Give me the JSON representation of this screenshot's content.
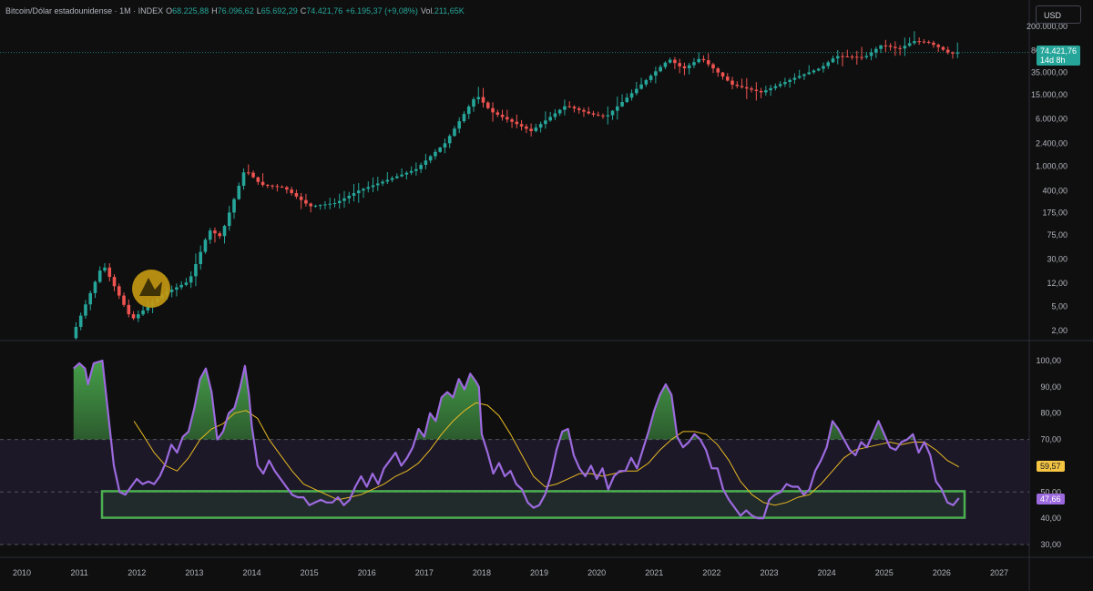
{
  "header": {
    "symbol": "Bitcoin/Dólar estadounidense · 1M · INDEX",
    "open_label": "O",
    "open": "68.225,88",
    "high_label": "H",
    "high": "76.096,62",
    "low_label": "L",
    "low": "65.692,29",
    "close_label": "C",
    "close": "74.421,76",
    "change": "+6.195,37 (+9,08%)",
    "vol_label": "Vol.",
    "vol": "211,65K",
    "currency": "USD"
  },
  "price_tag": {
    "value": "74.421,76",
    "countdown": "14d 8h",
    "color": "#26a69a"
  },
  "rsi_tags": {
    "ma": "59,57",
    "rsi": "47,66",
    "ma_color": "#f5c542",
    "rsi_color": "#9c6ade"
  },
  "colors": {
    "up": "#26a69a",
    "down": "#ef5350",
    "rsi": "#9c6ade",
    "ma": "#e8b923",
    "box": "#4caf50"
  },
  "chart_data": [
    {
      "type": "candlestick",
      "scale": "log",
      "y_ticks": [
        "2,00",
        "5,00",
        "12,00",
        "30,00",
        "75,00",
        "175,00",
        "400,00",
        "1.000,00",
        "2.400,00",
        "6.000,00",
        "15.000,00",
        "35.000,00",
        "80.000,00",
        "200.000,00"
      ],
      "x_ticks": [
        "2010",
        "2011",
        "2012",
        "2013",
        "2014",
        "2015",
        "2016",
        "2017",
        "2018",
        "2019",
        "2020",
        "2021",
        "2022",
        "2023",
        "2024",
        "2025",
        "2026",
        "2027"
      ],
      "price_path": [
        [
          2010.9,
          1.5
        ],
        [
          2011.45,
          25
        ],
        [
          2011.95,
          3
        ],
        [
          2012.5,
          8
        ],
        [
          2012.95,
          13
        ],
        [
          2013.3,
          90
        ],
        [
          2013.5,
          70
        ],
        [
          2013.92,
          900
        ],
        [
          2014.2,
          500
        ],
        [
          2014.6,
          450
        ],
        [
          2015.05,
          220
        ],
        [
          2015.5,
          250
        ],
        [
          2015.9,
          400
        ],
        [
          2016.5,
          650
        ],
        [
          2016.9,
          900
        ],
        [
          2017.4,
          2400
        ],
        [
          2017.95,
          15000
        ],
        [
          2018.2,
          8000
        ],
        [
          2018.9,
          3800
        ],
        [
          2019.5,
          10000
        ],
        [
          2019.95,
          7200
        ],
        [
          2020.2,
          6500
        ],
        [
          2020.95,
          29000
        ],
        [
          2021.3,
          58000
        ],
        [
          2021.55,
          40000
        ],
        [
          2021.85,
          61000
        ],
        [
          2022.4,
          22000
        ],
        [
          2022.9,
          16500
        ],
        [
          2023.5,
          29000
        ],
        [
          2023.95,
          42000
        ],
        [
          2024.2,
          65000
        ],
        [
          2024.7,
          62000
        ],
        [
          2025.0,
          100000
        ],
        [
          2025.3,
          85000
        ],
        [
          2025.55,
          115000
        ],
        [
          2025.8,
          110000
        ],
        [
          2026.0,
          90000
        ],
        [
          2026.2,
          70000
        ],
        [
          2026.3,
          74421.76
        ]
      ]
    },
    {
      "type": "line",
      "y_ticks": [
        "30,00",
        "40,00",
        "50,00",
        "60,00",
        "70,00",
        "80,00",
        "90,00",
        "100,00"
      ],
      "ylim": [
        30,
        100
      ],
      "bands": {
        "upper": 70,
        "middle": 50,
        "lower": 30
      },
      "series": [
        {
          "key": "rsi",
          "points": [
            [
              2010.9,
              97
            ],
            [
              2011.0,
              99
            ],
            [
              2011.1,
              97
            ],
            [
              2011.15,
              91
            ],
            [
              2011.25,
              99
            ],
            [
              2011.4,
              100
            ],
            [
              2011.5,
              80
            ],
            [
              2011.6,
              60
            ],
            [
              2011.7,
              50
            ],
            [
              2011.8,
              49
            ],
            [
              2011.9,
              52
            ],
            [
              2012.0,
              55
            ],
            [
              2012.1,
              53
            ],
            [
              2012.2,
              54
            ],
            [
              2012.3,
              53
            ],
            [
              2012.4,
              56
            ],
            [
              2012.5,
              61
            ],
            [
              2012.6,
              68
            ],
            [
              2012.7,
              65
            ],
            [
              2012.8,
              71
            ],
            [
              2012.9,
              73
            ],
            [
              2013.0,
              82
            ],
            [
              2013.1,
              93
            ],
            [
              2013.2,
              97
            ],
            [
              2013.3,
              88
            ],
            [
              2013.4,
              70
            ],
            [
              2013.5,
              73
            ],
            [
              2013.6,
              80
            ],
            [
              2013.7,
              82
            ],
            [
              2013.8,
              90
            ],
            [
              2013.88,
              98
            ],
            [
              2013.95,
              87
            ],
            [
              2014.0,
              75
            ],
            [
              2014.1,
              60
            ],
            [
              2014.2,
              57
            ],
            [
              2014.3,
              62
            ],
            [
              2014.4,
              58
            ],
            [
              2014.5,
              55
            ],
            [
              2014.6,
              52
            ],
            [
              2014.7,
              49
            ],
            [
              2014.8,
              48
            ],
            [
              2014.9,
              48
            ],
            [
              2015.0,
              45
            ],
            [
              2015.1,
              46
            ],
            [
              2015.2,
              47
            ],
            [
              2015.3,
              46
            ],
            [
              2015.4,
              46
            ],
            [
              2015.5,
              48
            ],
            [
              2015.6,
              45
            ],
            [
              2015.7,
              47
            ],
            [
              2015.8,
              52
            ],
            [
              2015.9,
              56
            ],
            [
              2016.0,
              52
            ],
            [
              2016.1,
              57
            ],
            [
              2016.2,
              53
            ],
            [
              2016.3,
              59
            ],
            [
              2016.4,
              62
            ],
            [
              2016.5,
              65
            ],
            [
              2016.6,
              60
            ],
            [
              2016.7,
              63
            ],
            [
              2016.8,
              67
            ],
            [
              2016.9,
              74
            ],
            [
              2017.0,
              71
            ],
            [
              2017.1,
              80
            ],
            [
              2017.2,
              77
            ],
            [
              2017.3,
              86
            ],
            [
              2017.4,
              88
            ],
            [
              2017.5,
              86
            ],
            [
              2017.6,
              93
            ],
            [
              2017.7,
              89
            ],
            [
              2017.8,
              95
            ],
            [
              2017.9,
              92
            ],
            [
              2017.95,
              90
            ],
            [
              2018.0,
              72
            ],
            [
              2018.1,
              65
            ],
            [
              2018.2,
              57
            ],
            [
              2018.3,
              61
            ],
            [
              2018.4,
              56
            ],
            [
              2018.5,
              58
            ],
            [
              2018.6,
              53
            ],
            [
              2018.7,
              51
            ],
            [
              2018.8,
              46
            ],
            [
              2018.9,
              44
            ],
            [
              2019.0,
              45
            ],
            [
              2019.1,
              49
            ],
            [
              2019.2,
              56
            ],
            [
              2019.3,
              66
            ],
            [
              2019.4,
              73
            ],
            [
              2019.5,
              74
            ],
            [
              2019.6,
              64
            ],
            [
              2019.7,
              59
            ],
            [
              2019.8,
              56
            ],
            [
              2019.9,
              60
            ],
            [
              2020.0,
              55
            ],
            [
              2020.1,
              59
            ],
            [
              2020.2,
              51
            ],
            [
              2020.3,
              56
            ],
            [
              2020.4,
              58
            ],
            [
              2020.5,
              58
            ],
            [
              2020.6,
              63
            ],
            [
              2020.7,
              59
            ],
            [
              2020.8,
              66
            ],
            [
              2020.9,
              73
            ],
            [
              2021.0,
              81
            ],
            [
              2021.1,
              87
            ],
            [
              2021.2,
              91
            ],
            [
              2021.3,
              87
            ],
            [
              2021.4,
              71
            ],
            [
              2021.5,
              67
            ],
            [
              2021.6,
              69
            ],
            [
              2021.7,
              72
            ],
            [
              2021.8,
              70
            ],
            [
              2021.9,
              66
            ],
            [
              2022.0,
              59
            ],
            [
              2022.1,
              59
            ],
            [
              2022.2,
              51
            ],
            [
              2022.3,
              47
            ],
            [
              2022.4,
              44
            ],
            [
              2022.5,
              41
            ],
            [
              2022.6,
              43
            ],
            [
              2022.7,
              41
            ],
            [
              2022.8,
              40
            ],
            [
              2022.9,
              40
            ],
            [
              2023.0,
              47
            ],
            [
              2023.1,
              49
            ],
            [
              2023.2,
              50
            ],
            [
              2023.3,
              53
            ],
            [
              2023.4,
              52
            ],
            [
              2023.5,
              52
            ],
            [
              2023.6,
              49
            ],
            [
              2023.7,
              51
            ],
            [
              2023.8,
              58
            ],
            [
              2023.9,
              62
            ],
            [
              2024.0,
              67
            ],
            [
              2024.1,
              77
            ],
            [
              2024.2,
              74
            ],
            [
              2024.3,
              70
            ],
            [
              2024.4,
              66
            ],
            [
              2024.5,
              64
            ],
            [
              2024.6,
              69
            ],
            [
              2024.7,
              67
            ],
            [
              2024.8,
              72
            ],
            [
              2024.9,
              77
            ],
            [
              2025.0,
              72
            ],
            [
              2025.1,
              67
            ],
            [
              2025.2,
              66
            ],
            [
              2025.3,
              69
            ],
            [
              2025.4,
              70
            ],
            [
              2025.5,
              72
            ],
            [
              2025.6,
              65
            ],
            [
              2025.7,
              69
            ],
            [
              2025.8,
              64
            ],
            [
              2025.9,
              54
            ],
            [
              2026.0,
              51
            ],
            [
              2026.1,
              46
            ],
            [
              2026.2,
              45
            ],
            [
              2026.3,
              47.66
            ]
          ]
        },
        {
          "key": "ma",
          "points": [
            [
              2011.95,
              77
            ],
            [
              2012.1,
              72
            ],
            [
              2012.3,
              65
            ],
            [
              2012.5,
              60
            ],
            [
              2012.7,
              58
            ],
            [
              2012.9,
              63
            ],
            [
              2013.1,
              70
            ],
            [
              2013.3,
              74
            ],
            [
              2013.5,
              76
            ],
            [
              2013.7,
              80
            ],
            [
              2013.9,
              81
            ],
            [
              2014.1,
              78
            ],
            [
              2014.3,
              70
            ],
            [
              2014.5,
              64
            ],
            [
              2014.7,
              58
            ],
            [
              2014.9,
              53
            ],
            [
              2015.1,
              51
            ],
            [
              2015.3,
              49
            ],
            [
              2015.5,
              47
            ],
            [
              2015.7,
              48
            ],
            [
              2015.9,
              49
            ],
            [
              2016.1,
              51
            ],
            [
              2016.3,
              53
            ],
            [
              2016.5,
              56
            ],
            [
              2016.7,
              58
            ],
            [
              2016.9,
              61
            ],
            [
              2017.1,
              66
            ],
            [
              2017.3,
              72
            ],
            [
              2017.5,
              77
            ],
            [
              2017.7,
              81
            ],
            [
              2017.9,
              84
            ],
            [
              2018.1,
              83
            ],
            [
              2018.3,
              79
            ],
            [
              2018.5,
              72
            ],
            [
              2018.7,
              64
            ],
            [
              2018.9,
              56
            ],
            [
              2019.1,
              52
            ],
            [
              2019.3,
              53
            ],
            [
              2019.5,
              55
            ],
            [
              2019.7,
              57
            ],
            [
              2019.9,
              57
            ],
            [
              2020.1,
              56
            ],
            [
              2020.3,
              57
            ],
            [
              2020.5,
              58
            ],
            [
              2020.7,
              58
            ],
            [
              2020.9,
              61
            ],
            [
              2021.1,
              66
            ],
            [
              2021.3,
              70
            ],
            [
              2021.5,
              73
            ],
            [
              2021.7,
              73
            ],
            [
              2021.9,
              72
            ],
            [
              2022.1,
              68
            ],
            [
              2022.3,
              62
            ],
            [
              2022.5,
              54
            ],
            [
              2022.7,
              49
            ],
            [
              2022.9,
              46
            ],
            [
              2023.1,
              45
            ],
            [
              2023.3,
              46
            ],
            [
              2023.5,
              48
            ],
            [
              2023.7,
              49
            ],
            [
              2023.9,
              53
            ],
            [
              2024.1,
              58
            ],
            [
              2024.3,
              63
            ],
            [
              2024.5,
              66
            ],
            [
              2024.7,
              67
            ],
            [
              2024.9,
              68
            ],
            [
              2025.1,
              69
            ],
            [
              2025.3,
              68
            ],
            [
              2025.5,
              69
            ],
            [
              2025.7,
              69
            ],
            [
              2025.9,
              66
            ],
            [
              2026.1,
              62
            ],
            [
              2026.3,
              59.57
            ]
          ]
        }
      ]
    }
  ]
}
